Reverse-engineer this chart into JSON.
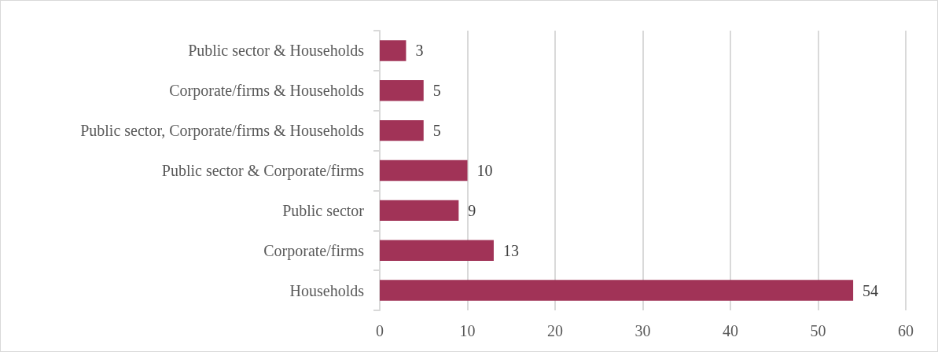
{
  "chart_data": {
    "type": "bar",
    "orientation": "horizontal",
    "categories": [
      "Public sector & Households",
      "Corporate/firms & Households",
      "Public sector, Corporate/firms & Households",
      "Public sector & Corporate/firms",
      "Public sector",
      "Corporate/firms",
      "Households"
    ],
    "values": [
      3,
      5,
      5,
      10,
      9,
      13,
      54
    ],
    "color": "#a13357",
    "xlim": [
      0,
      60
    ],
    "xticks": [
      0,
      10,
      20,
      30,
      40,
      50,
      60
    ],
    "grid": "x",
    "data_labels": true
  }
}
